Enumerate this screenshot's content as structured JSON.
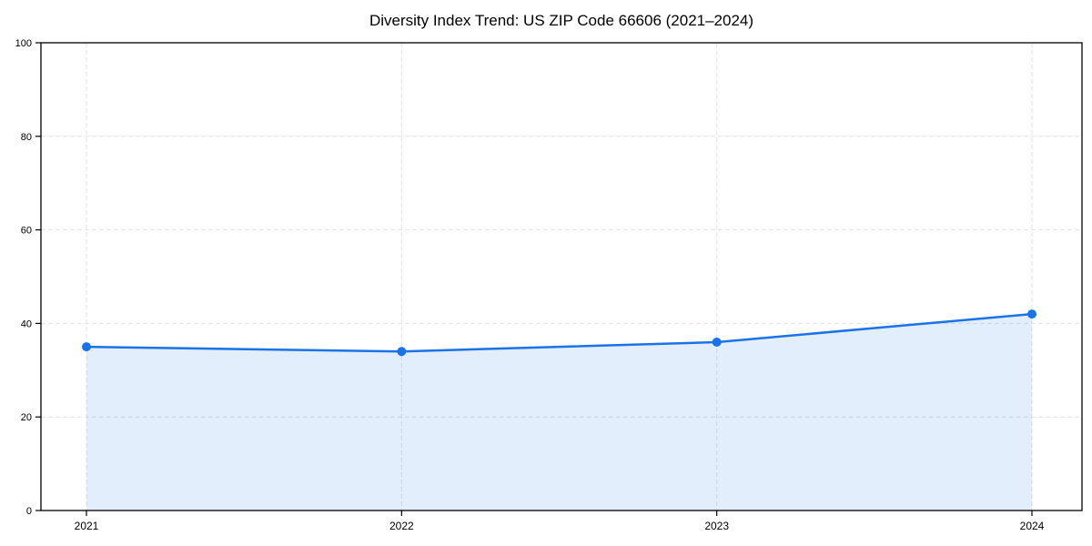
{
  "page": {
    "background": "#ffffff"
  },
  "chart_data": {
    "type": "line",
    "title": "Diversity Index Trend: US ZIP Code 66606 (2021–2024)",
    "categories": [
      "2021",
      "2022",
      "2023",
      "2024"
    ],
    "series": [
      {
        "name": "Diversity Index",
        "values": [
          35,
          34,
          36,
          42
        ]
      }
    ],
    "xlabel": "",
    "ylabel": "",
    "ylim": [
      0,
      100
    ],
    "yticks": [
      0,
      20,
      40,
      60,
      80,
      100
    ],
    "grid": true,
    "grid_style": "dashed",
    "legend_position": "none",
    "line_color": "#1a73e8",
    "marker_color": "#1a73e8",
    "fill_color": "rgba(26, 115, 232, 0.12)",
    "grid_color": "#e2e2e2",
    "axis_color": "#000000",
    "text_color": "#000000"
  }
}
